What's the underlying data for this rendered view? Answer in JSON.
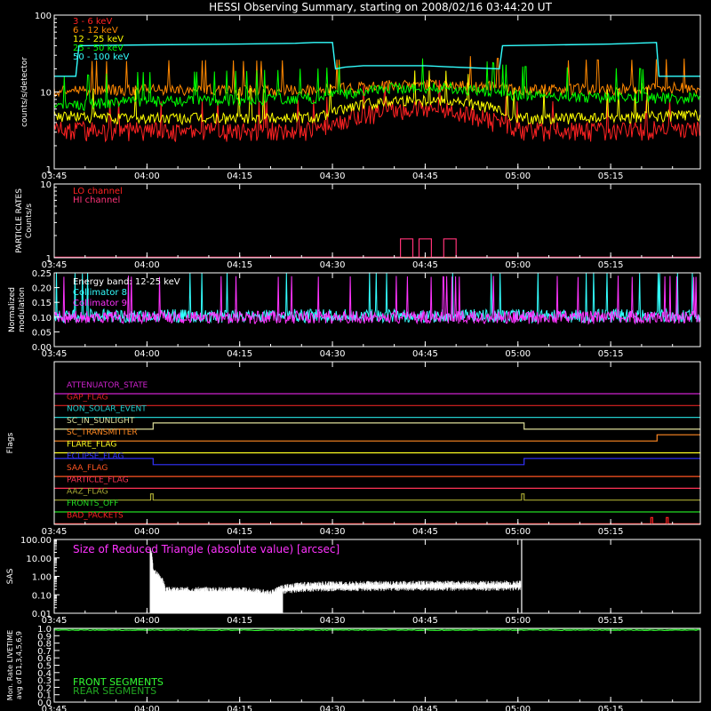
{
  "title": "HESSI Observing Summary, starting on 2008/02/16 03:44:20 UT",
  "time_axis": {
    "start_min": 225,
    "end_min": 329.5,
    "tick_minutes": [
      225,
      240,
      255,
      270,
      285,
      300,
      315
    ],
    "tick_labels": [
      "03:45",
      "04:00",
      "04:15",
      "04:30",
      "04:45",
      "05:00",
      "05:15"
    ]
  },
  "colors": {
    "axes": "#ffffff",
    "e3_6": "#ff2222",
    "e6_12": "#ff8800",
    "e12_25": "#ffff00",
    "e25_50": "#00ff00",
    "e50_100": "#33ffff",
    "lo_channel": "#ff2222",
    "hi_channel": "#ff3377",
    "collimator8": "#33ffff",
    "collimator9": "#ff33ff",
    "sas": "#ffffff",
    "sas_label": "#ff33ff",
    "front_segments": "#33ff33",
    "rear_segments": "#22aa22"
  },
  "chart_data": [
    {
      "type": "line",
      "panel": "count_rates",
      "ylabel": "counts/s/detector",
      "yscale": "log",
      "ylim": [
        1,
        100
      ],
      "y_tick_labels": [
        "1",
        "10",
        "100"
      ],
      "series": [
        {
          "name": "3 - 6 keV",
          "color_key": "e3_6",
          "x": [
            225,
            235,
            255,
            268,
            273,
            280,
            288,
            295,
            300,
            315,
            326,
            329.5
          ],
          "y": [
            3.3,
            3.2,
            3.2,
            3.3,
            4.8,
            6.0,
            6.0,
            4.5,
            3.2,
            3.2,
            3.4,
            3.4
          ]
        },
        {
          "name": "6 - 12 keV",
          "color_key": "e6_12",
          "x": [
            225,
            235,
            255,
            268,
            273,
            280,
            288,
            295,
            300,
            315,
            326,
            329.5
          ],
          "y": [
            10.5,
            10.8,
            10.8,
            10.8,
            11.5,
            12.5,
            12.5,
            12.0,
            11.0,
            11.0,
            11.5,
            11.5
          ]
        },
        {
          "name": "12 - 25 keV",
          "color_key": "e12_25",
          "x": [
            225,
            235,
            255,
            268,
            273,
            280,
            288,
            295,
            300,
            315,
            326,
            329.5
          ],
          "y": [
            5.0,
            4.6,
            4.6,
            4.8,
            6.5,
            8.0,
            8.0,
            6.5,
            4.6,
            4.6,
            5.0,
            5.0
          ]
        },
        {
          "name": "25 - 50 keV",
          "color_key": "e25_50",
          "x": [
            225,
            235,
            255,
            268,
            273,
            280,
            288,
            295,
            300,
            315,
            326,
            329.5
          ],
          "y": [
            6.5,
            7.5,
            8.0,
            8.5,
            10.0,
            11.5,
            11.5,
            10.5,
            9.0,
            8.5,
            8.5,
            8.5
          ]
        },
        {
          "name": "50 - 100 keV",
          "color_key": "e50_100",
          "x": [
            225,
            228.5,
            229,
            240,
            255,
            264,
            267,
            270,
            270.5,
            272,
            275,
            280,
            285,
            290,
            297,
            297.5,
            315,
            322.4,
            322.8,
            329.5
          ],
          "y": [
            16,
            16,
            40,
            41,
            42,
            43,
            44,
            44,
            20,
            21,
            22,
            22,
            22,
            21,
            20,
            40,
            42,
            44,
            16,
            16
          ]
        }
      ]
    },
    {
      "type": "line",
      "panel": "particle_rates",
      "ylabel": "PARTICLE RATES Counts/s",
      "yscale": "log",
      "ylim": [
        1,
        10
      ],
      "y_tick_labels": [
        "1",
        "10"
      ],
      "series": [
        {
          "name": "LO channel",
          "color_key": "lo_channel",
          "x": [
            225,
            329.5
          ],
          "y": [
            1,
            1
          ]
        },
        {
          "name": "HI channel",
          "color_key": "hi_channel",
          "x": [
            225,
            281,
            281,
            283,
            283,
            284,
            284,
            286,
            286,
            288,
            288,
            290,
            290,
            329.5
          ],
          "y": [
            1,
            1,
            1.8,
            1.8,
            1,
            1,
            1.8,
            1.8,
            1,
            1,
            1.8,
            1.8,
            1,
            1
          ]
        }
      ]
    },
    {
      "type": "line",
      "panel": "modulation",
      "ylabel": "Normalized modulation",
      "ylim": [
        0,
        0.25
      ],
      "y_tick_labels": [
        "0.00",
        "0.05",
        "0.10",
        "0.15",
        "0.20",
        "0.25"
      ],
      "annotation": "Energy band: 12-25 keV",
      "series": [
        {
          "name": "Collimator 8",
          "color_key": "collimator8",
          "x": [
            225,
            329.5
          ],
          "y": [
            0.105,
            0.105
          ]
        },
        {
          "name": "Collimator 9",
          "color_key": "collimator9",
          "x": [
            225,
            329.5
          ],
          "y": [
            0.1,
            0.1
          ]
        }
      ]
    },
    {
      "type": "line",
      "panel": "flags",
      "ylabel": "Flags",
      "series": [
        {
          "name": "ATTENUATOR_STATE",
          "color": "#cc22cc",
          "x": [
            225,
            329.5
          ],
          "y": [
            0,
            0
          ]
        },
        {
          "name": "GAP_FLAG",
          "color": "#dd2222",
          "x": [
            225,
            329.5
          ],
          "y": [
            0,
            0
          ]
        },
        {
          "name": "NON_SOLAR_EVENT",
          "color": "#22cccc",
          "x": [
            225,
            329.5
          ],
          "y": [
            0,
            0
          ]
        },
        {
          "name": "SC_IN_SUNLIGHT",
          "color": "#dddd99",
          "x": [
            225,
            241,
            241,
            301,
            301,
            329.5
          ],
          "y": [
            0,
            0,
            1,
            1,
            0,
            0
          ]
        },
        {
          "name": "SC_TRANSMITTER",
          "color": "#ff8822",
          "x": [
            225,
            322.5,
            322.5,
            329.5
          ],
          "y": [
            0,
            0,
            1,
            1
          ]
        },
        {
          "name": "FLARE_FLAG",
          "color": "#ffff22",
          "x": [
            225,
            329.5
          ],
          "y": [
            0,
            0
          ]
        },
        {
          "name": "ECLIPSE_FLAG",
          "color": "#3333ff",
          "x": [
            225,
            241,
            241,
            301,
            301,
            329.5
          ],
          "y": [
            1,
            1,
            0,
            0,
            1,
            1
          ]
        },
        {
          "name": "SAA_FLAG",
          "color": "#ff5522",
          "x": [
            225,
            329.5
          ],
          "y": [
            0,
            0
          ]
        },
        {
          "name": "PARTICLE_FLAG",
          "color": "#ff3355",
          "x": [
            225,
            329.5
          ],
          "y": [
            0,
            0
          ]
        },
        {
          "name": "AAZ_FLAG",
          "color": "#aaaa33",
          "x": [
            225,
            240.6,
            240.6,
            241,
            241,
            300.6,
            300.6,
            301,
            301,
            329.5
          ],
          "y": [
            0,
            0,
            1,
            1,
            0,
            0,
            1,
            1,
            0,
            0
          ]
        },
        {
          "name": "FRONTS_OFF",
          "color": "#22dd22",
          "x": [
            225,
            329.5
          ],
          "y": [
            0,
            0
          ]
        },
        {
          "name": "BAD_PACKETS",
          "color": "#ff2222",
          "x": [
            225,
            321.5,
            321.5,
            321.8,
            321.8,
            324,
            324,
            324.3,
            324.3,
            329.5
          ],
          "y": [
            0,
            0,
            1,
            1,
            0,
            0,
            1,
            1,
            0,
            0
          ]
        }
      ]
    },
    {
      "type": "line",
      "panel": "sas",
      "ylabel": "SAS",
      "yscale": "log",
      "ylim": [
        0.01,
        100
      ],
      "y_tick_labels": [
        "0.01",
        "0.10",
        "1.00",
        "10.00",
        "100.00"
      ],
      "label": "Size of Reduced Triangle (absolute value) [arcsec]",
      "series": [
        {
          "name": "Size of Reduced Triangle (absolute value) [arcsec]",
          "color_key": "sas",
          "x": [
            240.5,
            241,
            243,
            246,
            250,
            255,
            260,
            262,
            265,
            270,
            280,
            290,
            300.5
          ],
          "y": [
            25,
            1.5,
            0.15,
            0.15,
            0.15,
            0.15,
            0.1,
            0.2,
            0.28,
            0.3,
            0.32,
            0.32,
            0.33
          ]
        }
      ]
    },
    {
      "type": "line",
      "panel": "livetime",
      "ylabel": "Mon. Rate LIVETIME avg of D1,3,4,5,6,9",
      "ylim": [
        0,
        1
      ],
      "y_tick_labels": [
        "0.0",
        "0.1",
        "0.2",
        "0.3",
        "0.4",
        "0.5",
        "0.6",
        "0.7",
        "0.8",
        "0.9",
        "1.0"
      ],
      "series": [
        {
          "name": "FRONT SEGMENTS",
          "color_key": "front_segments",
          "x": [
            225,
            329.5
          ],
          "y": [
            0.975,
            0.975
          ]
        },
        {
          "name": "REAR SEGMENTS",
          "color_key": "rear_segments",
          "x": [
            225,
            329.5
          ],
          "y": [
            0.99,
            0.99
          ]
        }
      ]
    }
  ]
}
